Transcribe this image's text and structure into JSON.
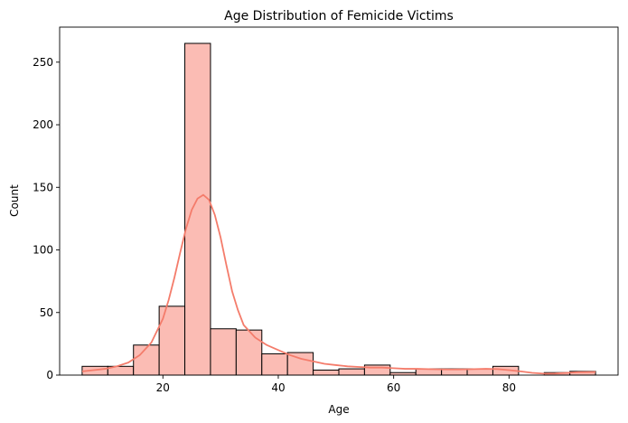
{
  "chart_data": {
    "type": "bar",
    "title": "Age Distribution of Femicide Victims",
    "xlabel": "Age",
    "ylabel": "Count",
    "xlim": [
      2.1,
      98.9
    ],
    "ylim": [
      0,
      278
    ],
    "xticks": [
      20,
      40,
      60,
      80
    ],
    "yticks": [
      0,
      50,
      100,
      150,
      200,
      250
    ],
    "bar_color": "#fbbcb4",
    "edge_color": "#000000",
    "kde_color": "#f47c6b",
    "bins": [
      {
        "start": 6.0,
        "end": 10.45,
        "count": 7
      },
      {
        "start": 10.45,
        "end": 14.9,
        "count": 7
      },
      {
        "start": 14.9,
        "end": 19.35,
        "count": 24
      },
      {
        "start": 19.35,
        "end": 23.8,
        "count": 55
      },
      {
        "start": 23.8,
        "end": 28.25,
        "count": 265
      },
      {
        "start": 28.25,
        "end": 32.7,
        "count": 37
      },
      {
        "start": 32.7,
        "end": 37.15,
        "count": 36
      },
      {
        "start": 37.15,
        "end": 41.6,
        "count": 17
      },
      {
        "start": 41.6,
        "end": 46.05,
        "count": 18
      },
      {
        "start": 46.05,
        "end": 50.5,
        "count": 4
      },
      {
        "start": 50.5,
        "end": 54.95,
        "count": 5
      },
      {
        "start": 54.95,
        "end": 59.4,
        "count": 8
      },
      {
        "start": 59.4,
        "end": 63.85,
        "count": 2
      },
      {
        "start": 63.85,
        "end": 68.3,
        "count": 5
      },
      {
        "start": 68.3,
        "end": 72.75,
        "count": 5
      },
      {
        "start": 72.75,
        "end": 77.2,
        "count": 5
      },
      {
        "start": 77.2,
        "end": 81.65,
        "count": 7
      },
      {
        "start": 81.65,
        "end": 86.1,
        "count": 0
      },
      {
        "start": 86.1,
        "end": 90.55,
        "count": 2
      },
      {
        "start": 90.55,
        "end": 95.0,
        "count": 3
      }
    ],
    "kde": {
      "x": [
        6,
        8,
        10,
        12,
        14,
        16,
        18,
        20,
        21,
        22,
        23,
        24,
        25,
        26,
        27,
        28,
        29,
        30,
        31,
        32,
        33,
        34,
        36,
        38,
        40,
        42,
        44,
        46,
        48,
        50,
        52,
        54,
        56,
        58,
        60,
        62,
        64,
        66,
        68,
        70,
        72,
        74,
        76,
        78,
        80,
        82,
        84,
        86,
        88,
        90,
        92,
        95
      ],
      "y": [
        3,
        4,
        5,
        7,
        10,
        16,
        26,
        45,
        60,
        78,
        98,
        117,
        132,
        141,
        144,
        140,
        128,
        110,
        88,
        67,
        52,
        40,
        30,
        24,
        20,
        16,
        13,
        11,
        9,
        8,
        7,
        6.5,
        6,
        6,
        5.5,
        5,
        5,
        4.8,
        4.6,
        4.5,
        4.6,
        4.8,
        5,
        4.8,
        4,
        3,
        1.8,
        1.2,
        1.3,
        1.8,
        2.3,
        2.5
      ]
    }
  }
}
